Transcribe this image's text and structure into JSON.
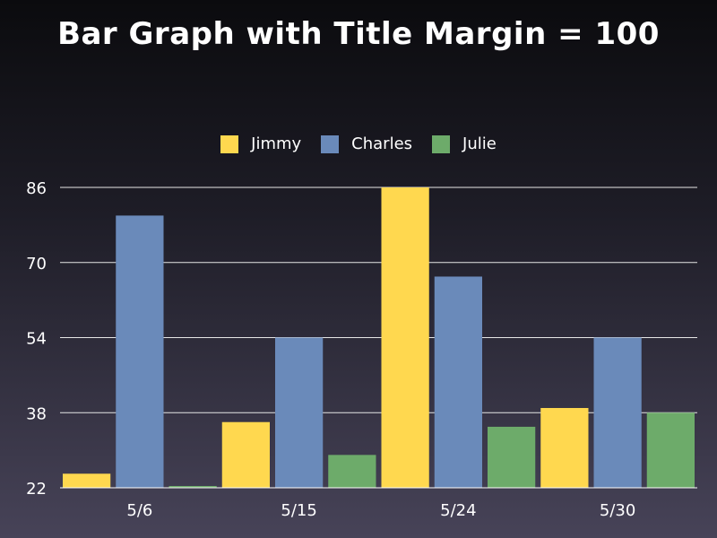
{
  "chart_data": {
    "type": "bar",
    "title": "Bar Graph with Title Margin = 100",
    "categories": [
      "5/6",
      "5/15",
      "5/24",
      "5/30"
    ],
    "series": [
      {
        "name": "Jimmy",
        "color": "#ffd84f",
        "values": [
          25,
          36,
          86,
          39
        ]
      },
      {
        "name": "Charles",
        "color": "#6a8aba",
        "values": [
          80,
          54,
          67,
          54
        ]
      },
      {
        "name": "Julie",
        "color": "#6dab6a",
        "values": [
          22,
          29,
          35,
          38
        ]
      }
    ],
    "ylim": [
      22,
      86
    ],
    "yticks": [
      22,
      38,
      54,
      70,
      86
    ],
    "grid": true,
    "legend_position": "top-center"
  }
}
